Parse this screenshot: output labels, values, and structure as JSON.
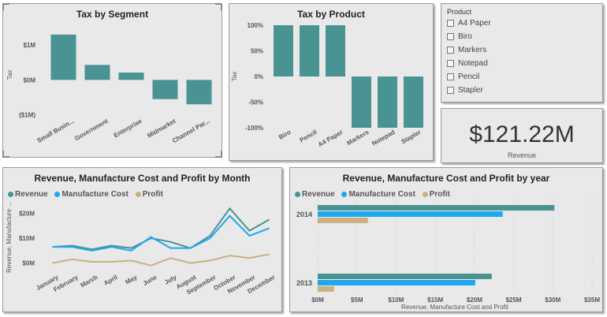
{
  "colors": {
    "revenue": "#4a9393",
    "manufacture": "#1ea8f0",
    "profit": "#c9b180",
    "bar": "#4a9393"
  },
  "segment_chart": {
    "title": "Tax by Segment",
    "ylabel": "Tax"
  },
  "product_chart": {
    "title": "Tax by Product",
    "ylabel": "Tax"
  },
  "month_chart": {
    "title": "Revenue, Manufacture Cost and Profit by Month",
    "ylabel": "Revenue, Manufacture ..."
  },
  "year_chart": {
    "title": "Revenue, Manufacture Cost and Profit by year",
    "xlabel": "Revenue, Manufacture Cost and Profit"
  },
  "legend": {
    "revenue": "Revenue",
    "manufacture": "Manufacture Cost",
    "profit": "Profit"
  },
  "slicer": {
    "title": "Product",
    "items": [
      {
        "label": "A4 Paper",
        "checked": false
      },
      {
        "label": "Biro",
        "checked": false
      },
      {
        "label": "Markers",
        "checked": false
      },
      {
        "label": "Notepad",
        "checked": false
      },
      {
        "label": "Pencil",
        "checked": false
      },
      {
        "label": "Stapler",
        "checked": false
      }
    ]
  },
  "card": {
    "value": "$121.22M",
    "label": "Revenue"
  },
  "chart_data": [
    {
      "type": "bar",
      "title": "Tax by Segment",
      "ylabel": "Tax",
      "categories": [
        "Small Busin...",
        "Government",
        "Enterprise",
        "Midmarket",
        "Channel Par..."
      ],
      "values": [
        1.3,
        0.43,
        0.21,
        -0.55,
        -0.7
      ],
      "yticks": [
        "$1M",
        "$0M",
        "($1M)"
      ],
      "ytick_values": [
        1,
        0,
        -1
      ],
      "ylim": [
        -1.1,
        1.5
      ]
    },
    {
      "type": "bar",
      "title": "Tax by Product",
      "ylabel": "Tax",
      "categories": [
        "Biro",
        "Pencil",
        "A4 Paper",
        "Markers",
        "Notepad",
        "Stapler"
      ],
      "values": [
        100,
        100,
        100,
        -100,
        -100,
        -100
      ],
      "yticks": [
        "100%",
        "50%",
        "0%",
        "-50%",
        "-100%"
      ],
      "ytick_values": [
        100,
        50,
        0,
        -50,
        -100
      ],
      "ylim": [
        -100,
        100
      ]
    },
    {
      "type": "line",
      "title": "Revenue, Manufacture Cost and Profit by Month",
      "ylabel": "Revenue, Manufacture ...",
      "categories": [
        "January",
        "February",
        "March",
        "April",
        "May",
        "June",
        "July",
        "August",
        "September",
        "October",
        "November",
        "December"
      ],
      "series": [
        {
          "name": "Revenue",
          "values": [
            6.5,
            7,
            5.5,
            7,
            6,
            10,
            8.5,
            6,
            11,
            22,
            13,
            17.5
          ]
        },
        {
          "name": "Manufacture Cost",
          "values": [
            6.5,
            6.5,
            5,
            6.5,
            5,
            10.5,
            6,
            6,
            10,
            19,
            11,
            14
          ]
        },
        {
          "name": "Profit",
          "values": [
            0,
            1.5,
            0.5,
            0.5,
            1,
            -1,
            2,
            0,
            1,
            3,
            2,
            3.5
          ]
        }
      ],
      "yticks": [
        "$20M",
        "$10M",
        "$0M"
      ],
      "ytick_values": [
        20,
        10,
        0
      ],
      "ylim": [
        -3,
        24
      ]
    },
    {
      "type": "bar",
      "orientation": "horizontal",
      "title": "Revenue, Manufacture Cost and Profit by year",
      "xlabel": "Revenue, Manufacture Cost and Profit",
      "categories": [
        "2014",
        "2013"
      ],
      "series": [
        {
          "name": "Revenue",
          "values": [
            30.2,
            22.2
          ]
        },
        {
          "name": "Manufacture Cost",
          "values": [
            23.6,
            20.1
          ]
        },
        {
          "name": "Profit",
          "values": [
            6.4,
            2.1
          ]
        }
      ],
      "xticks": [
        "$0M",
        "$5M",
        "$10M",
        "$15M",
        "$20M",
        "$25M",
        "$30M",
        "$35M"
      ],
      "xtick_values": [
        0,
        5,
        10,
        15,
        20,
        25,
        30,
        35
      ],
      "xlim": [
        0,
        35
      ]
    }
  ]
}
